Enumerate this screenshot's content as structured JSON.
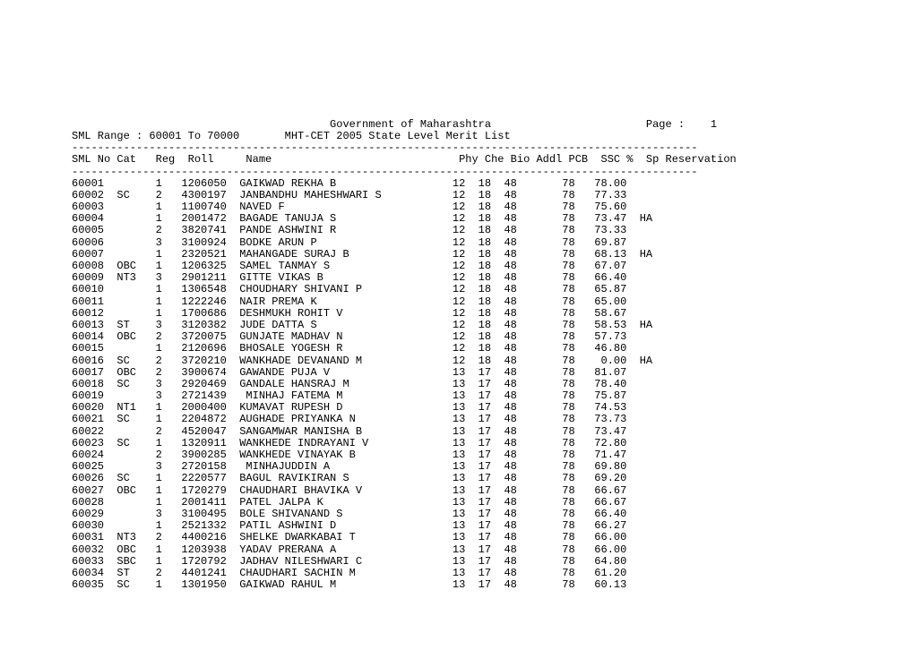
{
  "header": {
    "title": "Government of Maharashtra",
    "page_label": "Page :",
    "page_number": "1",
    "sml_range_label": "SML Range : 60001 To 70000",
    "subtitle": "MHT-CET 2005 State Level Merit List"
  },
  "columns": [
    "SML No",
    "Cat",
    "Reg",
    "Roll",
    "Name",
    "Phy",
    "Che",
    "Bio",
    "Addl",
    "PCB",
    "SSC %",
    "Sp Reservation"
  ],
  "separator": "-------------------------------------------------------------------------------------------------",
  "rows": [
    {
      "sml": "60001",
      "cat": "",
      "reg": "1",
      "roll": "1206050",
      "name": "GAIKWAD REKHA B",
      "phy": "12",
      "che": "18",
      "bio": "48",
      "addl": "",
      "pcb": "78",
      "ssc": "78.00",
      "sp": ""
    },
    {
      "sml": "60002",
      "cat": "SC",
      "reg": "2",
      "roll": "4300197",
      "name": "JANBANDHU MAHESHWARI S",
      "phy": "12",
      "che": "18",
      "bio": "48",
      "addl": "",
      "pcb": "78",
      "ssc": "77.33",
      "sp": ""
    },
    {
      "sml": "60003",
      "cat": "",
      "reg": "1",
      "roll": "1100740",
      "name": "NAVED F",
      "phy": "12",
      "che": "18",
      "bio": "48",
      "addl": "",
      "pcb": "78",
      "ssc": "75.60",
      "sp": ""
    },
    {
      "sml": "60004",
      "cat": "",
      "reg": "1",
      "roll": "2001472",
      "name": "BAGADE TANUJA S",
      "phy": "12",
      "che": "18",
      "bio": "48",
      "addl": "",
      "pcb": "78",
      "ssc": "73.47",
      "sp": "HA"
    },
    {
      "sml": "60005",
      "cat": "",
      "reg": "2",
      "roll": "3820741",
      "name": "PANDE ASHWINI R",
      "phy": "12",
      "che": "18",
      "bio": "48",
      "addl": "",
      "pcb": "78",
      "ssc": "73.33",
      "sp": ""
    },
    {
      "sml": "60006",
      "cat": "",
      "reg": "3",
      "roll": "3100924",
      "name": "BODKE ARUN P",
      "phy": "12",
      "che": "18",
      "bio": "48",
      "addl": "",
      "pcb": "78",
      "ssc": "69.87",
      "sp": ""
    },
    {
      "sml": "60007",
      "cat": "",
      "reg": "1",
      "roll": "2320521",
      "name": "MAHANGADE SURAJ B",
      "phy": "12",
      "che": "18",
      "bio": "48",
      "addl": "",
      "pcb": "78",
      "ssc": "68.13",
      "sp": "HA"
    },
    {
      "sml": "60008",
      "cat": "OBC",
      "reg": "1",
      "roll": "1206325",
      "name": "SAMEL TANMAY S",
      "phy": "12",
      "che": "18",
      "bio": "48",
      "addl": "",
      "pcb": "78",
      "ssc": "67.07",
      "sp": ""
    },
    {
      "sml": "60009",
      "cat": "NT3",
      "reg": "3",
      "roll": "2901211",
      "name": "GITTE VIKAS B",
      "phy": "12",
      "che": "18",
      "bio": "48",
      "addl": "",
      "pcb": "78",
      "ssc": "66.40",
      "sp": ""
    },
    {
      "sml": "60010",
      "cat": "",
      "reg": "1",
      "roll": "1306548",
      "name": "CHOUDHARY SHIVANI P",
      "phy": "12",
      "che": "18",
      "bio": "48",
      "addl": "",
      "pcb": "78",
      "ssc": "65.87",
      "sp": ""
    },
    {
      "sml": "60011",
      "cat": "",
      "reg": "1",
      "roll": "1222246",
      "name": "NAIR PREMA K",
      "phy": "12",
      "che": "18",
      "bio": "48",
      "addl": "",
      "pcb": "78",
      "ssc": "65.00",
      "sp": ""
    },
    {
      "sml": "60012",
      "cat": "",
      "reg": "1",
      "roll": "1700686",
      "name": "DESHMUKH ROHIT V",
      "phy": "12",
      "che": "18",
      "bio": "48",
      "addl": "",
      "pcb": "78",
      "ssc": "58.67",
      "sp": ""
    },
    {
      "sml": "60013",
      "cat": "ST",
      "reg": "3",
      "roll": "3120382",
      "name": "JUDE DATTA S",
      "phy": "12",
      "che": "18",
      "bio": "48",
      "addl": "",
      "pcb": "78",
      "ssc": "58.53",
      "sp": "HA"
    },
    {
      "sml": "60014",
      "cat": "OBC",
      "reg": "2",
      "roll": "3720075",
      "name": "GUNJATE MADHAV N",
      "phy": "12",
      "che": "18",
      "bio": "48",
      "addl": "",
      "pcb": "78",
      "ssc": "57.73",
      "sp": ""
    },
    {
      "sml": "60015",
      "cat": "",
      "reg": "1",
      "roll": "2120696",
      "name": "BHOSALE YOGESH R",
      "phy": "12",
      "che": "18",
      "bio": "48",
      "addl": "",
      "pcb": "78",
      "ssc": "46.80",
      "sp": ""
    },
    {
      "sml": "60016",
      "cat": "SC",
      "reg": "2",
      "roll": "3720210",
      "name": "WANKHADE DEVANAND M",
      "phy": "12",
      "che": "18",
      "bio": "48",
      "addl": "",
      "pcb": "78",
      "ssc": " 0.00",
      "sp": "HA"
    },
    {
      "sml": "60017",
      "cat": "OBC",
      "reg": "2",
      "roll": "3900674",
      "name": "GAWANDE PUJA V",
      "phy": "13",
      "che": "17",
      "bio": "48",
      "addl": "",
      "pcb": "78",
      "ssc": "81.07",
      "sp": ""
    },
    {
      "sml": "60018",
      "cat": "SC",
      "reg": "3",
      "roll": "2920469",
      "name": "GANDALE HANSRAJ M",
      "phy": "13",
      "che": "17",
      "bio": "48",
      "addl": "",
      "pcb": "78",
      "ssc": "78.40",
      "sp": ""
    },
    {
      "sml": "60019",
      "cat": "",
      "reg": "3",
      "roll": "2721439",
      "name": " MINHAJ FATEMA M",
      "phy": "13",
      "che": "17",
      "bio": "48",
      "addl": "",
      "pcb": "78",
      "ssc": "75.87",
      "sp": ""
    },
    {
      "sml": "60020",
      "cat": "NT1",
      "reg": "1",
      "roll": "2000400",
      "name": "KUMAVAT RUPESH D",
      "phy": "13",
      "che": "17",
      "bio": "48",
      "addl": "",
      "pcb": "78",
      "ssc": "74.53",
      "sp": ""
    },
    {
      "sml": "60021",
      "cat": "SC",
      "reg": "1",
      "roll": "2204872",
      "name": "AUGHADE PRIYANKA N",
      "phy": "13",
      "che": "17",
      "bio": "48",
      "addl": "",
      "pcb": "78",
      "ssc": "73.73",
      "sp": ""
    },
    {
      "sml": "60022",
      "cat": "",
      "reg": "2",
      "roll": "4520047",
      "name": "SANGAMWAR MANISHA B",
      "phy": "13",
      "che": "17",
      "bio": "48",
      "addl": "",
      "pcb": "78",
      "ssc": "73.47",
      "sp": ""
    },
    {
      "sml": "60023",
      "cat": "SC",
      "reg": "1",
      "roll": "1320911",
      "name": "WANKHEDE INDRAYANI V",
      "phy": "13",
      "che": "17",
      "bio": "48",
      "addl": "",
      "pcb": "78",
      "ssc": "72.80",
      "sp": ""
    },
    {
      "sml": "60024",
      "cat": "",
      "reg": "2",
      "roll": "3900285",
      "name": "WANKHEDE VINAYAK B",
      "phy": "13",
      "che": "17",
      "bio": "48",
      "addl": "",
      "pcb": "78",
      "ssc": "71.47",
      "sp": ""
    },
    {
      "sml": "60025",
      "cat": "",
      "reg": "3",
      "roll": "2720158",
      "name": " MINHAJUDDIN A",
      "phy": "13",
      "che": "17",
      "bio": "48",
      "addl": "",
      "pcb": "78",
      "ssc": "69.80",
      "sp": ""
    },
    {
      "sml": "60026",
      "cat": "SC",
      "reg": "1",
      "roll": "2220577",
      "name": "BAGUL RAVIKIRAN S",
      "phy": "13",
      "che": "17",
      "bio": "48",
      "addl": "",
      "pcb": "78",
      "ssc": "69.20",
      "sp": ""
    },
    {
      "sml": "60027",
      "cat": "OBC",
      "reg": "1",
      "roll": "1720279",
      "name": "CHAUDHARI BHAVIKA V",
      "phy": "13",
      "che": "17",
      "bio": "48",
      "addl": "",
      "pcb": "78",
      "ssc": "66.67",
      "sp": ""
    },
    {
      "sml": "60028",
      "cat": "",
      "reg": "1",
      "roll": "2001411",
      "name": "PATEL JALPA K",
      "phy": "13",
      "che": "17",
      "bio": "48",
      "addl": "",
      "pcb": "78",
      "ssc": "66.67",
      "sp": ""
    },
    {
      "sml": "60029",
      "cat": "",
      "reg": "3",
      "roll": "3100495",
      "name": "BOLE SHIVANAND S",
      "phy": "13",
      "che": "17",
      "bio": "48",
      "addl": "",
      "pcb": "78",
      "ssc": "66.40",
      "sp": ""
    },
    {
      "sml": "60030",
      "cat": "",
      "reg": "1",
      "roll": "2521332",
      "name": "PATIL ASHWINI D",
      "phy": "13",
      "che": "17",
      "bio": "48",
      "addl": "",
      "pcb": "78",
      "ssc": "66.27",
      "sp": ""
    },
    {
      "sml": "60031",
      "cat": "NT3",
      "reg": "2",
      "roll": "4400216",
      "name": "SHELKE DWARKABAI T",
      "phy": "13",
      "che": "17",
      "bio": "48",
      "addl": "",
      "pcb": "78",
      "ssc": "66.00",
      "sp": ""
    },
    {
      "sml": "60032",
      "cat": "OBC",
      "reg": "1",
      "roll": "1203938",
      "name": "YADAV PRERANA A",
      "phy": "13",
      "che": "17",
      "bio": "48",
      "addl": "",
      "pcb": "78",
      "ssc": "66.00",
      "sp": ""
    },
    {
      "sml": "60033",
      "cat": "SBC",
      "reg": "1",
      "roll": "1720792",
      "name": "JADHAV NILESHWARI C",
      "phy": "13",
      "che": "17",
      "bio": "48",
      "addl": "",
      "pcb": "78",
      "ssc": "64.80",
      "sp": ""
    },
    {
      "sml": "60034",
      "cat": "ST",
      "reg": "2",
      "roll": "4401241",
      "name": "CHAUDHARI SACHIN M",
      "phy": "13",
      "che": "17",
      "bio": "48",
      "addl": "",
      "pcb": "78",
      "ssc": "61.20",
      "sp": ""
    },
    {
      "sml": "60035",
      "cat": "SC",
      "reg": "1",
      "roll": "1301950",
      "name": "GAIKWAD RAHUL M",
      "phy": "13",
      "che": "17",
      "bio": "48",
      "addl": "",
      "pcb": "78",
      "ssc": "60.13",
      "sp": ""
    }
  ]
}
